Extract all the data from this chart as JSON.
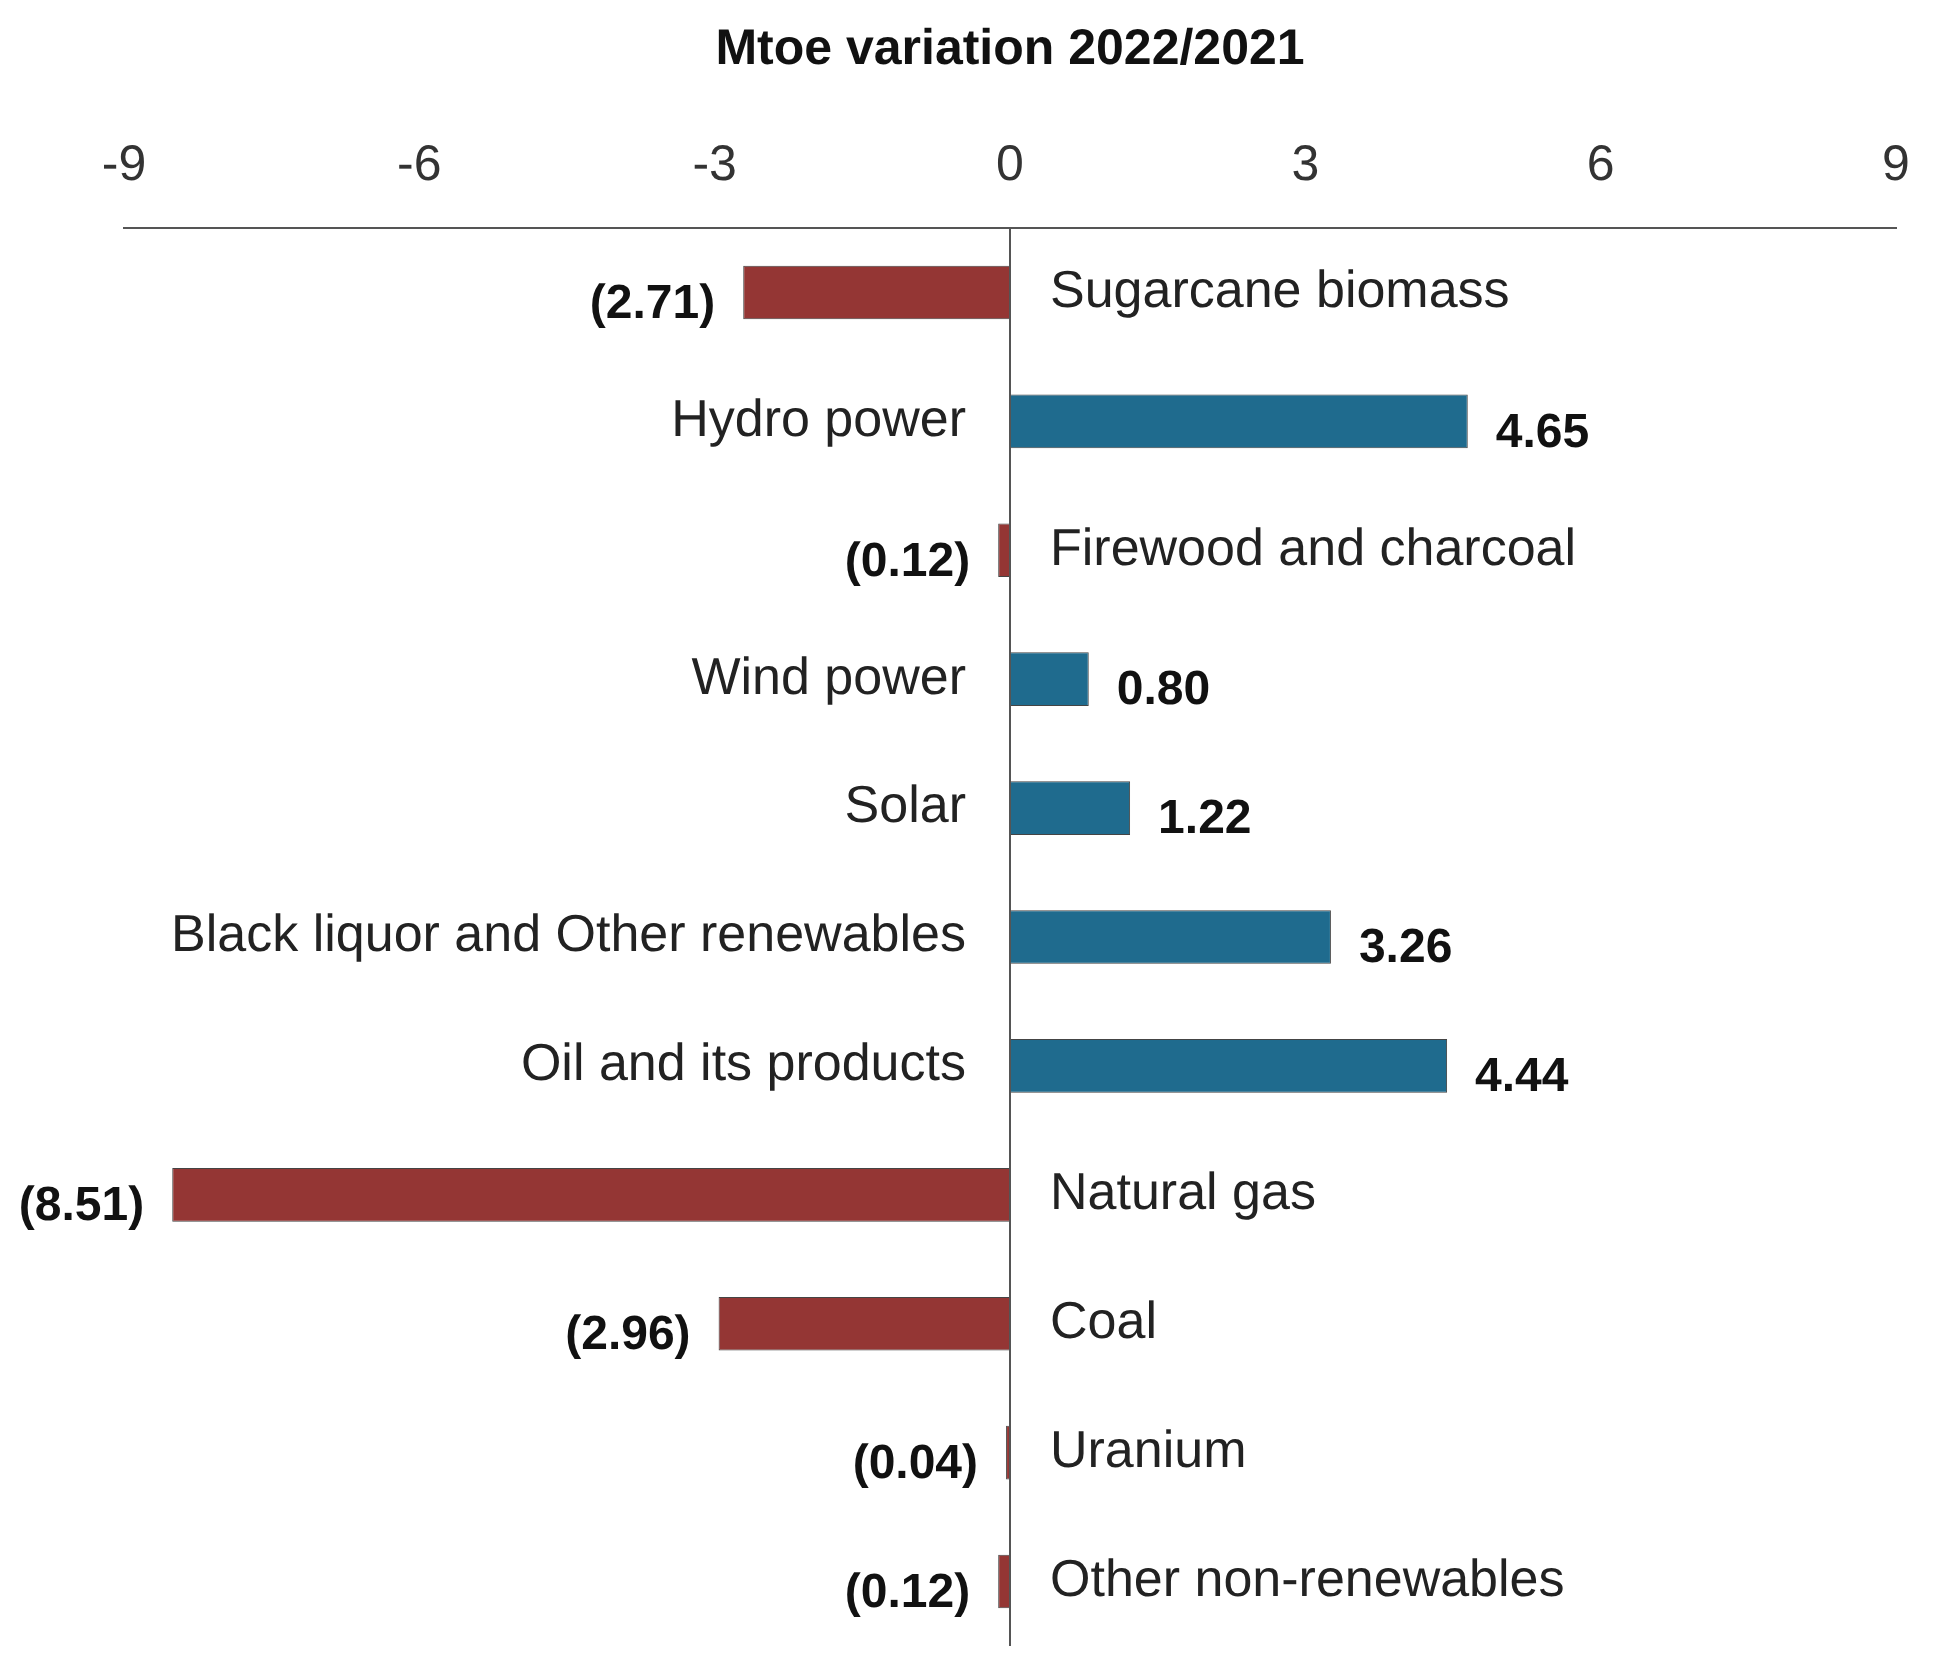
{
  "chart_data": {
    "type": "bar",
    "orientation": "horizontal",
    "xlabel": "Mtoe variation 2022/2021",
    "categories": [
      "Sugarcane biomass",
      "Hydro power",
      "Firewood and charcoal",
      "Wind power",
      "Solar",
      "Black liquor and Other renewables",
      "Oil and its products",
      "Natural gas",
      "Coal",
      "Uranium",
      "Other non-renewables"
    ],
    "values": [
      -2.71,
      4.65,
      -0.12,
      0.8,
      1.22,
      3.26,
      4.44,
      -8.51,
      -2.96,
      -0.04,
      -0.12
    ],
    "colors": [
      "#943634",
      "#1f6b8e",
      "#943634",
      "#1f6b8e",
      "#1f6b8e",
      "#1f6b8e",
      "#1f6b8e",
      "#943634",
      "#943634",
      "#943634",
      "#943634"
    ],
    "value_labels": [
      "(2.71)",
      "4.65",
      "(0.12)",
      "0.80",
      "1.22",
      "3.26",
      "4.44",
      "(8.51)",
      "(2.96)",
      "(0.04)",
      "(0.12)"
    ],
    "xlim": [
      -9,
      9
    ],
    "xticks": [
      -9,
      -6,
      -3,
      0,
      3,
      6,
      9
    ],
    "grid": false,
    "legend": false
  }
}
